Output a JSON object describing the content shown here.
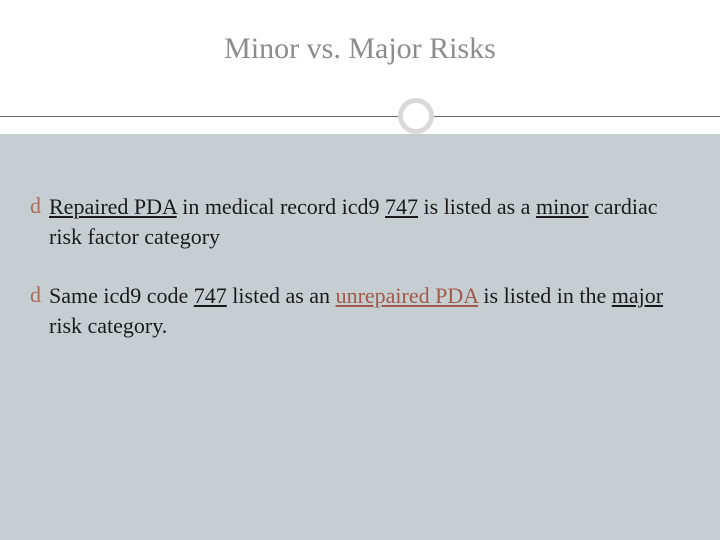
{
  "slide": {
    "title": "Minor vs. Major Risks",
    "title_color": "#8c8c8c",
    "title_fontsize": 30,
    "background_top": "#ffffff",
    "background_body": "#c7ced2",
    "divider_line_color": "#6b6b6b",
    "circle_border_color": "#d9d9d9",
    "circle_fill": "#ffffff",
    "accent_color": "#9e5a4a",
    "body_text_color": "#1a1a1a",
    "body_fontsize": 22,
    "bullet_glyph": "d",
    "bullets": [
      {
        "leading_space": " ",
        "seg1_text": "Repaired PDA",
        "seg1_underline": true,
        "seg2_text": " in medical record icd9 ",
        "seg3_text": "747",
        "seg3_underline": true,
        "seg4_text": " is listed as a ",
        "seg5_text": "minor",
        "seg5_underline": true,
        "seg6_text": " cardiac risk factor category"
      },
      {
        "seg1_text": "Same icd9 code ",
        "seg2_text": "747",
        "seg2_underline": true,
        "seg3_text": " listed as an ",
        "seg4_text": "unrepaired PDA",
        "seg4_underline": true,
        "seg4_accent": true,
        "seg5_text": " is listed in the ",
        "seg6_text": "major",
        "seg6_underline": true,
        "seg7_text": " risk category."
      }
    ]
  }
}
